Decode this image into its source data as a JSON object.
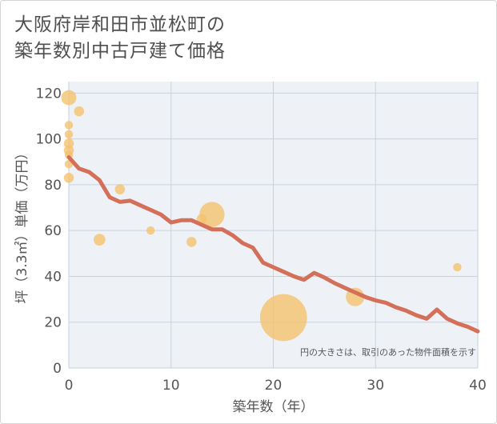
{
  "title_lines": [
    "大阪府岸和田市並松町の",
    "築年数別中古戸建て価格"
  ],
  "chart_data": {
    "type": "scatter",
    "xlabel": "築年数（年）",
    "ylabel": "坪（3.3㎡）単価（万円）",
    "xlim": [
      0,
      40
    ],
    "ylim": [
      0,
      125
    ],
    "xticks": [
      0,
      10,
      20,
      30,
      40
    ],
    "yticks": [
      0,
      20,
      40,
      60,
      80,
      100,
      120
    ],
    "grid": true,
    "note": "円の大きさは、取引のあった物件面積を示す",
    "colors": {
      "bubble": "#f5c26b",
      "line": "#d4705a",
      "grid": "#c7d2df",
      "plot_bg": "#eef2f7"
    },
    "points": [
      {
        "x": 0,
        "y": 118,
        "size": 9
      },
      {
        "x": 1,
        "y": 112,
        "size": 6
      },
      {
        "x": 0,
        "y": 106,
        "size": 5
      },
      {
        "x": 0,
        "y": 102,
        "size": 5
      },
      {
        "x": 0,
        "y": 98,
        "size": 6
      },
      {
        "x": 0,
        "y": 95,
        "size": 6
      },
      {
        "x": 0,
        "y": 93,
        "size": 5
      },
      {
        "x": 0,
        "y": 89,
        "size": 5
      },
      {
        "x": 0,
        "y": 83,
        "size": 6
      },
      {
        "x": 5,
        "y": 78,
        "size": 6
      },
      {
        "x": 3,
        "y": 56,
        "size": 7
      },
      {
        "x": 8,
        "y": 60,
        "size": 5
      },
      {
        "x": 12,
        "y": 55,
        "size": 6
      },
      {
        "x": 13,
        "y": 65,
        "size": 6
      },
      {
        "x": 14,
        "y": 67,
        "size": 15
      },
      {
        "x": 21,
        "y": 22,
        "size": 28
      },
      {
        "x": 28,
        "y": 31,
        "size": 11
      },
      {
        "x": 38,
        "y": 44,
        "size": 5
      }
    ],
    "trend": {
      "x": [
        0,
        1,
        2,
        3,
        4,
        5,
        6,
        7,
        8,
        9,
        10,
        11,
        12,
        13,
        14,
        15,
        16,
        17,
        18,
        19,
        20,
        21,
        22,
        23,
        24,
        25,
        26,
        27,
        28,
        29,
        30,
        31,
        32,
        33,
        34,
        35,
        36,
        37,
        38,
        39,
        40
      ],
      "y": [
        92,
        87,
        85.5,
        82,
        74.5,
        72.5,
        73,
        71,
        69,
        67,
        63.5,
        64.5,
        64.5,
        62.5,
        60.5,
        60.5,
        58,
        54.5,
        52.5,
        46,
        44,
        42,
        40,
        38.5,
        41.5,
        39.5,
        37,
        35,
        33,
        31,
        29.5,
        28.5,
        26.5,
        25,
        23,
        21.5,
        25.5,
        21.5,
        19.5,
        18,
        16
      ]
    }
  }
}
